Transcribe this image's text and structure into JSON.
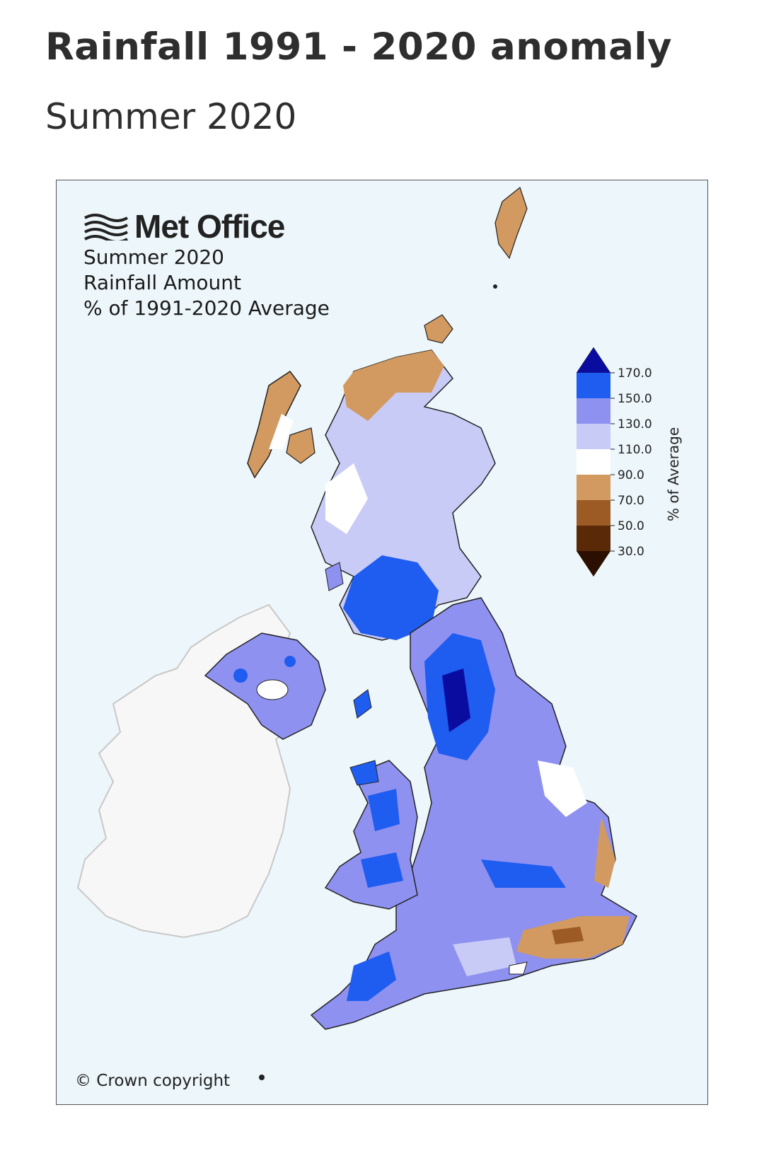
{
  "header": {
    "title": "Rainfall 1991 - 2020 anomaly",
    "subtitle": "Summer 2020"
  },
  "map": {
    "logo_text": "Met Office",
    "caption_lines": [
      "Summer 2020",
      "Rainfall Amount",
      "% of 1991-2020 Average"
    ],
    "copyright": "© Crown copyright",
    "background_color": "#edf6fa",
    "ireland_color": "#f7f7f7"
  },
  "legend": {
    "title": "% of Average",
    "ticks": [
      "170.0",
      "150.0",
      "130.0",
      "110.0",
      "90.0",
      "70.0",
      "50.0",
      "30.0"
    ],
    "bands": [
      {
        "range": ">170",
        "color": "#0a0ca0"
      },
      {
        "range": "150-170",
        "color": "#1f5cf0"
      },
      {
        "range": "130-150",
        "color": "#8e91f0"
      },
      {
        "range": "110-130",
        "color": "#c9cbf7"
      },
      {
        "range": "90-110",
        "color": "#ffffff"
      },
      {
        "range": "70-90",
        "color": "#d29a60"
      },
      {
        "range": "50-70",
        "color": "#9c5a25"
      },
      {
        "range": "30-50",
        "color": "#5a2a08"
      },
      {
        "range": "<30",
        "color": "#2b0f00"
      }
    ]
  }
}
